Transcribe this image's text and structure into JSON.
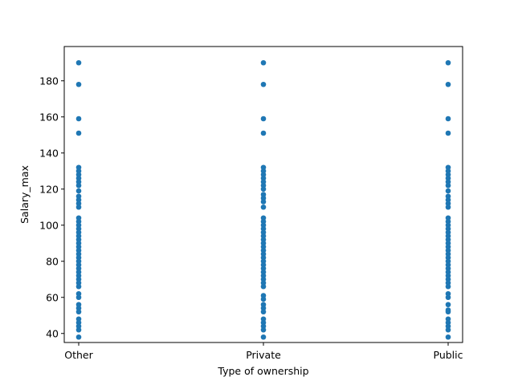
{
  "chart_data": {
    "type": "scatter",
    "title": "",
    "xlabel": "Type of ownership",
    "ylabel": "Salary_max",
    "categories": [
      "Other",
      "Private",
      "Public"
    ],
    "ylim": [
      35,
      199
    ],
    "yticks": [
      40,
      60,
      80,
      100,
      120,
      140,
      160,
      180
    ],
    "grid": false,
    "color": "#1f77b4",
    "series": [
      {
        "category": "Other",
        "values": [
          190,
          178,
          159,
          151,
          132,
          130,
          128,
          126,
          124,
          122,
          119,
          116,
          114,
          112,
          110,
          104,
          102,
          100,
          98,
          96,
          94,
          92,
          90,
          88,
          86,
          84,
          82,
          80,
          78,
          76,
          74,
          72,
          70,
          68,
          66,
          62,
          60,
          56,
          54,
          52,
          48,
          46,
          44,
          42,
          38
        ]
      },
      {
        "category": "Private",
        "values": [
          190,
          178,
          159,
          151,
          132,
          130,
          128,
          126,
          124,
          122,
          120,
          117,
          115,
          113,
          110,
          104,
          102,
          100,
          98,
          96,
          94,
          92,
          90,
          88,
          86,
          84,
          82,
          80,
          78,
          76,
          74,
          72,
          70,
          68,
          66,
          61,
          59,
          56,
          54,
          52,
          48,
          46,
          44,
          42,
          38
        ]
      },
      {
        "category": "Public",
        "values": [
          190,
          178,
          159,
          151,
          132,
          130,
          128,
          126,
          124,
          122,
          119,
          116,
          114,
          112,
          110,
          104,
          102,
          100,
          98,
          96,
          94,
          92,
          90,
          88,
          86,
          84,
          82,
          80,
          78,
          76,
          74,
          72,
          70,
          68,
          66,
          62,
          60,
          56,
          53,
          52,
          48,
          46,
          44,
          42,
          38
        ]
      }
    ]
  }
}
